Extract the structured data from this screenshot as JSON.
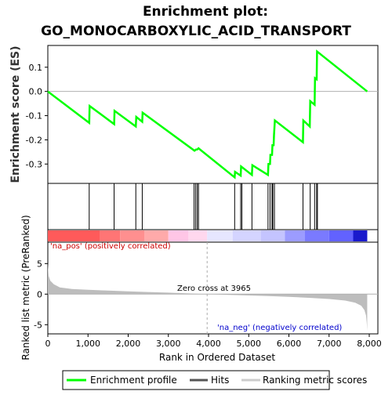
{
  "chart_data": {
    "type": "line",
    "title_line1": "Enrichment plot:",
    "title_line2": "GO_MONOCARBOXYLIC_ACID_TRANSPORT",
    "es_panel": {
      "ylabel": "Enrichment score (ES)",
      "ylim": [
        -0.38,
        0.19
      ],
      "yticks": [
        0.1,
        0.0,
        -0.1,
        -0.2,
        -0.3
      ],
      "ytick_labels": [
        "0.1",
        "0.0",
        "-0.1",
        "-0.2",
        "-0.3"
      ],
      "series_color": "#00ff00",
      "points": [
        [
          0,
          0.0
        ],
        [
          1030,
          -0.13
        ],
        [
          1040,
          -0.06
        ],
        [
          1650,
          -0.135
        ],
        [
          1660,
          -0.08
        ],
        [
          2190,
          -0.145
        ],
        [
          2200,
          -0.105
        ],
        [
          2350,
          -0.125
        ],
        [
          2360,
          -0.088
        ],
        [
          3650,
          -0.245
        ],
        [
          3690,
          -0.24
        ],
        [
          3720,
          -0.24
        ],
        [
          3750,
          -0.235
        ],
        [
          4650,
          -0.355
        ],
        [
          4660,
          -0.332
        ],
        [
          4800,
          -0.348
        ],
        [
          4810,
          -0.31
        ],
        [
          5080,
          -0.345
        ],
        [
          5090,
          -0.305
        ],
        [
          5480,
          -0.345
        ],
        [
          5490,
          -0.3
        ],
        [
          5530,
          -0.3
        ],
        [
          5540,
          -0.262
        ],
        [
          5580,
          -0.262
        ],
        [
          5590,
          -0.222
        ],
        [
          5620,
          -0.222
        ],
        [
          5630,
          -0.18
        ],
        [
          5650,
          -0.12
        ],
        [
          6350,
          -0.21
        ],
        [
          6360,
          -0.12
        ],
        [
          6520,
          -0.145
        ],
        [
          6530,
          -0.04
        ],
        [
          6640,
          -0.055
        ],
        [
          6650,
          0.055
        ],
        [
          6690,
          0.05
        ],
        [
          6700,
          0.165
        ],
        [
          7950,
          0.0
        ]
      ]
    },
    "hits": [
      1030,
      1650,
      2190,
      2350,
      3640,
      3680,
      3720,
      3750,
      4650,
      4800,
      4830,
      5080,
      5480,
      5530,
      5580,
      5600,
      5640,
      6350,
      6530,
      6640,
      6690,
      6710
    ],
    "rank_panel": {
      "ylabel": "Ranked list metric (PreRanked)",
      "ylim": [
        -6.5,
        8.5
      ],
      "yticks": [
        5,
        0,
        -5
      ],
      "ytick_labels": [
        "5",
        "0",
        "-5"
      ],
      "xlabel": "Rank in Ordered Dataset",
      "xlim": [
        0,
        8400
      ],
      "xticks": [
        0,
        1000,
        2000,
        3000,
        4000,
        5000,
        6000,
        7000,
        8000
      ],
      "xtick_labels": [
        "0",
        "1,000",
        "2,000",
        "3,000",
        "4,000",
        "5,000",
        "6,000",
        "7,000",
        "8,000"
      ],
      "zero_cross_rank": 3965,
      "zero_cross_label": "Zero cross at 3965",
      "pos_label": "'na_pos' (positively correlated)",
      "neg_label": "'na_neg' (negatively correlated)",
      "metric_profile": [
        [
          0,
          5.0
        ],
        [
          20,
          3.0
        ],
        [
          60,
          2.2
        ],
        [
          150,
          1.6
        ],
        [
          300,
          1.1
        ],
        [
          600,
          0.85
        ],
        [
          1000,
          0.7
        ],
        [
          1500,
          0.58
        ],
        [
          2000,
          0.45
        ],
        [
          2500,
          0.35
        ],
        [
          3000,
          0.25
        ],
        [
          3500,
          0.12
        ],
        [
          3965,
          0.0
        ],
        [
          4500,
          -0.12
        ],
        [
          5000,
          -0.22
        ],
        [
          5500,
          -0.32
        ],
        [
          6000,
          -0.45
        ],
        [
          6500,
          -0.6
        ],
        [
          7000,
          -0.8
        ],
        [
          7400,
          -1.05
        ],
        [
          7650,
          -1.4
        ],
        [
          7800,
          -1.9
        ],
        [
          7880,
          -2.6
        ],
        [
          7920,
          -3.5
        ],
        [
          7940,
          -4.8
        ],
        [
          7950,
          -6.0
        ]
      ],
      "max_rank": 7950
    },
    "heat_stops": [
      {
        "start": 0,
        "end": 1300,
        "color": "#ff5a5a"
      },
      {
        "start": 1300,
        "end": 1800,
        "color": "#ff7575"
      },
      {
        "start": 1800,
        "end": 2400,
        "color": "#ff8f8f"
      },
      {
        "start": 2400,
        "end": 3000,
        "color": "#ffaaaa"
      },
      {
        "start": 3000,
        "end": 3500,
        "color": "#ffc6e6"
      },
      {
        "start": 3500,
        "end": 3965,
        "color": "#ffd8ee"
      },
      {
        "start": 3965,
        "end": 4600,
        "color": "#e6e6ff"
      },
      {
        "start": 4600,
        "end": 5300,
        "color": "#d4d4ff"
      },
      {
        "start": 5300,
        "end": 5900,
        "color": "#c4c4ff"
      },
      {
        "start": 5900,
        "end": 6400,
        "color": "#9c9cff"
      },
      {
        "start": 6400,
        "end": 7000,
        "color": "#7a7aff"
      },
      {
        "start": 7000,
        "end": 7600,
        "color": "#6262ff"
      },
      {
        "start": 7600,
        "end": 7950,
        "color": "#1a1acc"
      }
    ],
    "legend": [
      {
        "label": "Enrichment profile",
        "color": "#00ff00"
      },
      {
        "label": "Hits",
        "color": "#555555"
      },
      {
        "label": "Ranking metric scores",
        "color": "#cccccc"
      }
    ]
  }
}
